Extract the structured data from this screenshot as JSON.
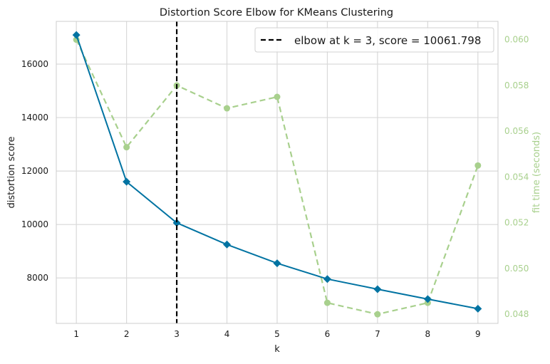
{
  "chart_data": {
    "type": "line",
    "title": "Distortion Score Elbow for KMeans Clustering",
    "xlabel": "k",
    "ylabel": "distortion score",
    "y2label": "fit time (seconds)",
    "x": [
      1,
      2,
      3,
      4,
      5,
      6,
      7,
      8,
      9
    ],
    "xticks": [
      "1",
      "2",
      "3",
      "4",
      "5",
      "6",
      "7",
      "8",
      "9"
    ],
    "xlim": [
      0.6,
      9.4
    ],
    "ylim": [
      6300,
      17600
    ],
    "yticks": [
      "8000",
      "10000",
      "12000",
      "14000",
      "16000"
    ],
    "y2lim": [
      0.0476,
      0.0608
    ],
    "y2ticks": [
      "0.048",
      "0.050",
      "0.052",
      "0.054",
      "0.056",
      "0.058",
      "0.060"
    ],
    "grid": true,
    "legend_position": "top-right",
    "series": [
      {
        "axis": "left",
        "color": "#0173a2",
        "marker": "diamond",
        "values": [
          17090,
          11600,
          10062,
          9250,
          8550,
          7960,
          7580,
          7210,
          6850
        ]
      },
      {
        "axis": "right",
        "color": "#a8d08d",
        "marker": "circle",
        "dashed": true,
        "values": [
          0.06,
          0.0553,
          0.058,
          0.057,
          0.0575,
          0.0485,
          0.048,
          0.0485,
          0.0545
        ]
      }
    ],
    "elbow": {
      "k": 3,
      "color": "#000000",
      "legend_text": "elbow at k = 3, score = 10061.798"
    }
  }
}
